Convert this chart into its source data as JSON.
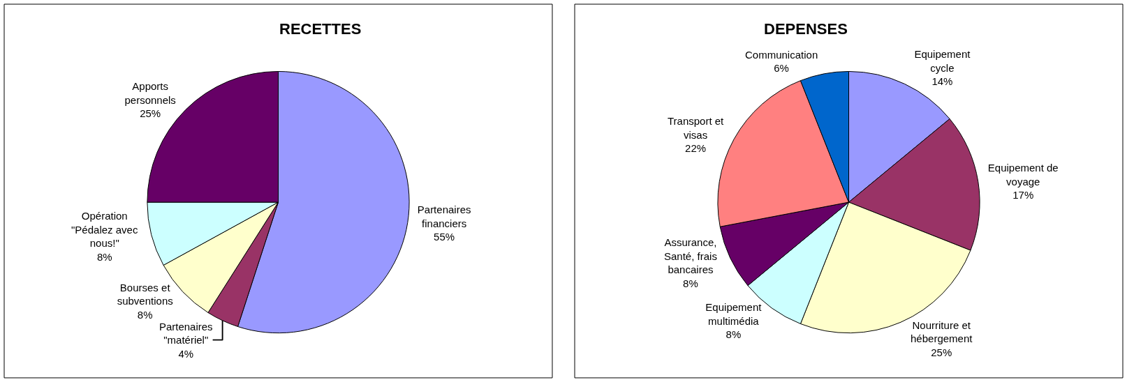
{
  "chart_data": [
    {
      "type": "pie",
      "title": "RECETTES",
      "categories": [
        "Partenaires financiers",
        "Partenaires \"matériel\"",
        "Bourses et subventions",
        "Opération \"Pédalez avec nous!\"",
        "Apports personnels"
      ],
      "values": [
        55,
        4,
        8,
        8,
        25
      ],
      "value_labels": [
        "55%",
        "4%",
        "8%",
        "8%",
        "25%"
      ],
      "colors": [
        "#9999ff",
        "#993366",
        "#ffffcc",
        "#ccffff",
        "#660066"
      ]
    },
    {
      "type": "pie",
      "title": "DEPENSES",
      "categories": [
        "Equipement cycle",
        "Equipement de voyage",
        "Nourriture et hébergement",
        "Equipement multimédia",
        "Assurance, Santé, frais bancaires",
        "Transport et visas",
        "Communication"
      ],
      "values": [
        14,
        17,
        25,
        8,
        8,
        22,
        6
      ],
      "value_labels": [
        "14%",
        "17%",
        "25%",
        "8%",
        "8%",
        "22%",
        "6%"
      ],
      "colors": [
        "#9999ff",
        "#993366",
        "#ffffcc",
        "#ccffff",
        "#660066",
        "#ff8080",
        "#0066cc"
      ]
    }
  ]
}
